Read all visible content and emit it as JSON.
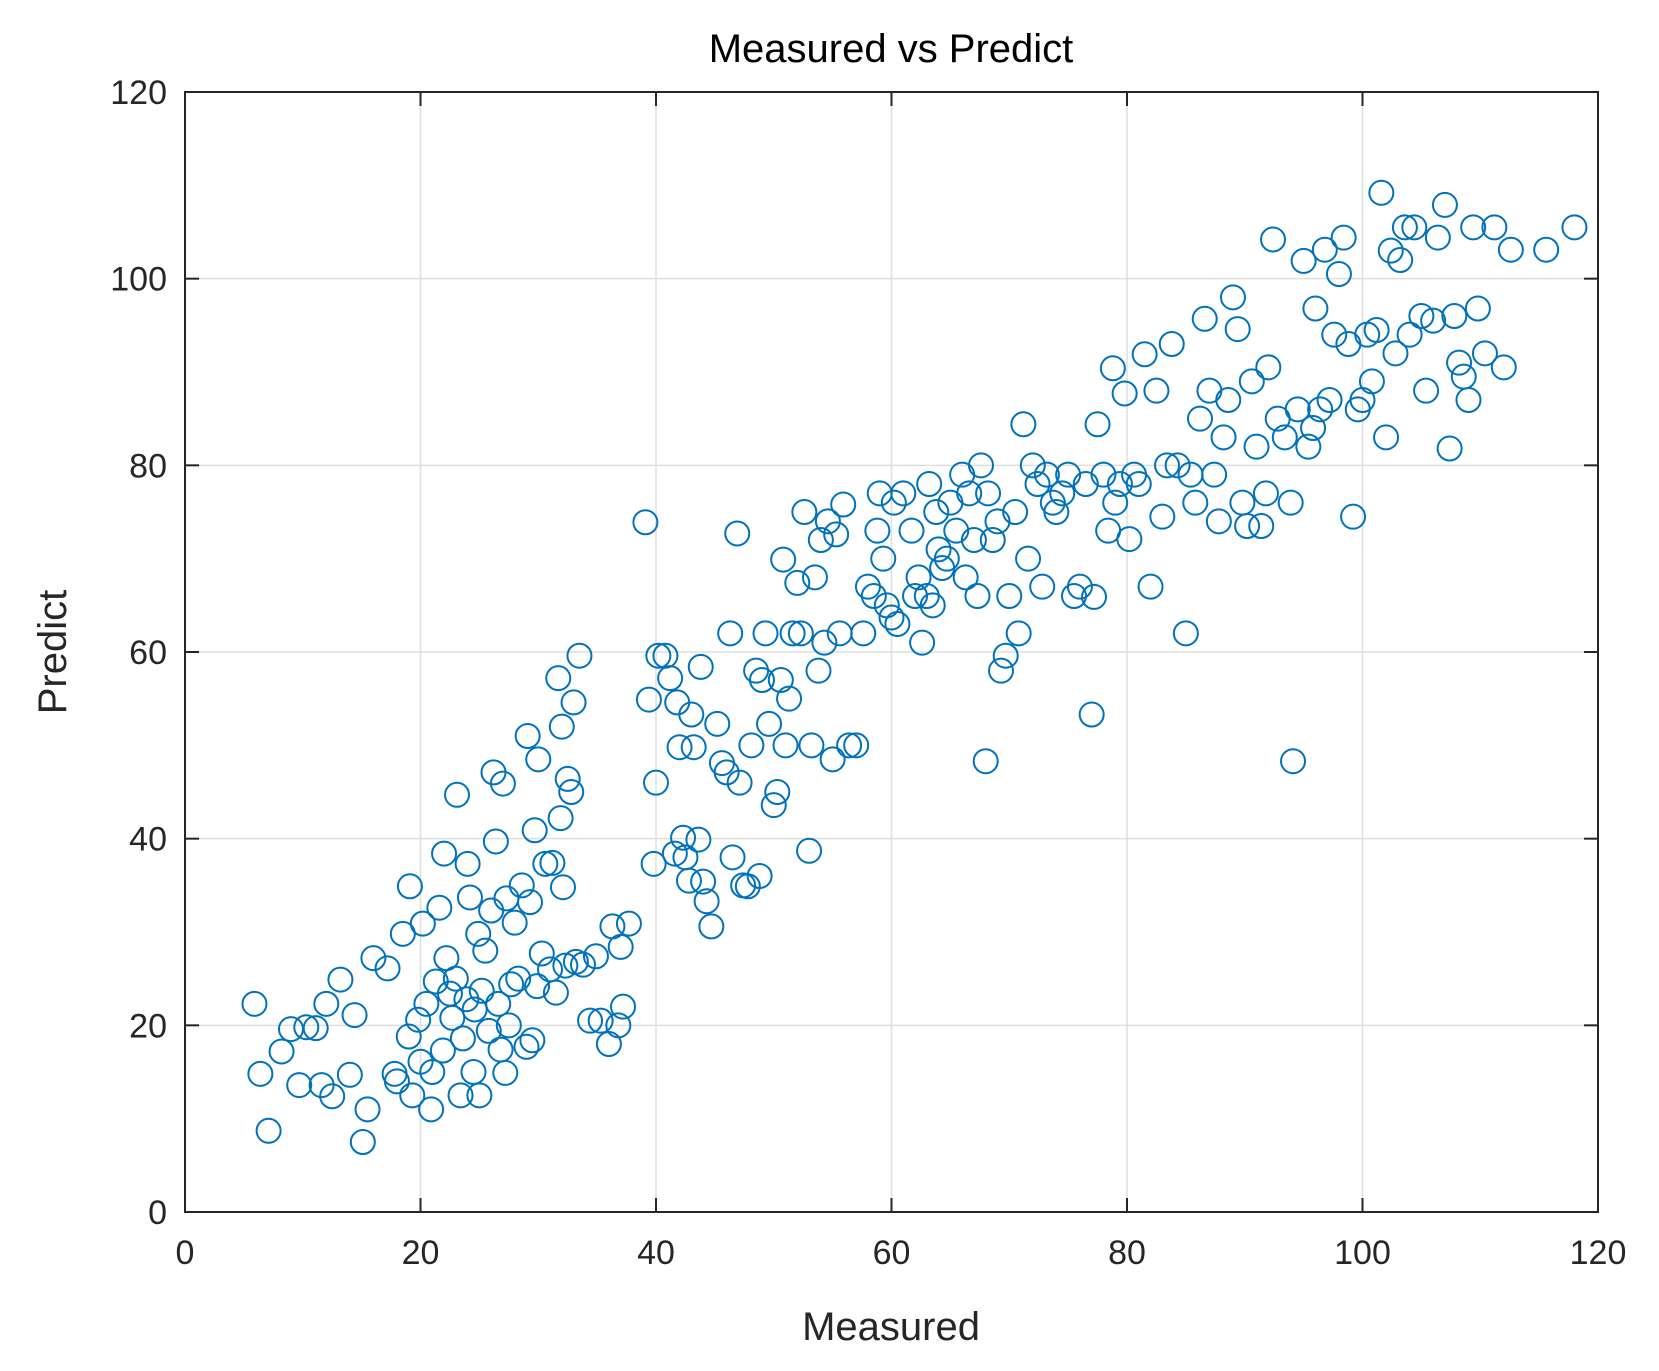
{
  "colors": {
    "marker": "#0072BD",
    "grid": "#DFDFDF",
    "axis": "#262626",
    "background": "#FFFFFF"
  },
  "chart_data": {
    "type": "scatter",
    "title": "Measured vs Predict",
    "xlabel": "Measured",
    "ylabel": "Predict",
    "xlim": [
      0,
      120
    ],
    "ylim": [
      0,
      120
    ],
    "xticks": [
      0,
      20,
      40,
      60,
      80,
      100,
      120
    ],
    "yticks": [
      0,
      20,
      40,
      60,
      80,
      100,
      120
    ],
    "xtick_labels": [
      "0",
      "20",
      "40",
      "60",
      "80",
      "100",
      "120"
    ],
    "ytick_labels": [
      "0",
      "20",
      "40",
      "60",
      "80",
      "100",
      "120"
    ],
    "grid": true,
    "marker": "circle-open",
    "series": [
      {
        "name": "Measured vs Predict",
        "points": [
          [
            5.9,
            22.3
          ],
          [
            6.4,
            14.8
          ],
          [
            7.1,
            8.7
          ],
          [
            8.2,
            17.2
          ],
          [
            9.0,
            19.6
          ],
          [
            9.7,
            13.6
          ],
          [
            10.3,
            19.8
          ],
          [
            11.1,
            19.7
          ],
          [
            11.6,
            13.6
          ],
          [
            12.0,
            22.3
          ],
          [
            12.5,
            12.4
          ],
          [
            13.2,
            24.9
          ],
          [
            14.0,
            14.7
          ],
          [
            14.4,
            21.1
          ],
          [
            15.1,
            7.5
          ],
          [
            15.5,
            11.0
          ],
          [
            16.0,
            27.2
          ],
          [
            17.2,
            26.1
          ],
          [
            17.8,
            14.8
          ],
          [
            18.0,
            14.0
          ],
          [
            18.5,
            29.8
          ],
          [
            19.1,
            34.9
          ],
          [
            19.0,
            18.8
          ],
          [
            19.3,
            12.5
          ],
          [
            19.8,
            20.6
          ],
          [
            20.0,
            16.1
          ],
          [
            20.2,
            30.9
          ],
          [
            20.5,
            22.3
          ],
          [
            20.9,
            11.0
          ],
          [
            21.0,
            15.0
          ],
          [
            21.3,
            24.7
          ],
          [
            21.6,
            32.6
          ],
          [
            21.9,
            17.3
          ],
          [
            22.0,
            38.4
          ],
          [
            22.2,
            27.2
          ],
          [
            22.5,
            23.4
          ],
          [
            22.7,
            20.8
          ],
          [
            23.0,
            25.0
          ],
          [
            23.1,
            44.7
          ],
          [
            23.4,
            12.5
          ],
          [
            23.6,
            18.6
          ],
          [
            23.9,
            22.8
          ],
          [
            24.0,
            37.3
          ],
          [
            24.2,
            33.7
          ],
          [
            24.5,
            15.0
          ],
          [
            24.6,
            21.7
          ],
          [
            24.9,
            29.8
          ],
          [
            25.0,
            12.5
          ],
          [
            25.2,
            23.7
          ],
          [
            25.5,
            28.0
          ],
          [
            25.8,
            19.4
          ],
          [
            26.0,
            32.3
          ],
          [
            26.2,
            47.1
          ],
          [
            26.4,
            39.7
          ],
          [
            26.6,
            22.3
          ],
          [
            26.8,
            17.4
          ],
          [
            27.0,
            45.9
          ],
          [
            27.2,
            14.9
          ],
          [
            27.3,
            33.6
          ],
          [
            27.5,
            20.0
          ],
          [
            27.7,
            24.4
          ],
          [
            28.0,
            31.0
          ],
          [
            28.3,
            25.0
          ],
          [
            28.6,
            35.0
          ],
          [
            29.0,
            17.7
          ],
          [
            29.1,
            51.0
          ],
          [
            29.3,
            33.2
          ],
          [
            29.5,
            18.4
          ],
          [
            29.7,
            40.9
          ],
          [
            29.9,
            24.2
          ],
          [
            30.0,
            48.5
          ],
          [
            30.3,
            27.7
          ],
          [
            30.6,
            37.3
          ],
          [
            31.0,
            26.0
          ],
          [
            31.2,
            37.4
          ],
          [
            31.5,
            23.5
          ],
          [
            31.7,
            57.2
          ],
          [
            31.9,
            42.2
          ],
          [
            32.0,
            52.0
          ],
          [
            32.1,
            34.8
          ],
          [
            32.3,
            26.4
          ],
          [
            32.5,
            46.4
          ],
          [
            32.8,
            45.0
          ],
          [
            33.0,
            54.6
          ],
          [
            33.2,
            26.8
          ],
          [
            33.5,
            59.6
          ],
          [
            33.8,
            26.5
          ],
          [
            34.4,
            20.5
          ],
          [
            34.9,
            27.4
          ],
          [
            35.3,
            20.5
          ],
          [
            36.0,
            18.0
          ],
          [
            36.3,
            30.6
          ],
          [
            36.8,
            20.0
          ],
          [
            37.0,
            28.4
          ],
          [
            37.2,
            22.0
          ],
          [
            37.7,
            30.9
          ],
          [
            39.1,
            73.9
          ],
          [
            39.4,
            54.9
          ],
          [
            39.8,
            37.3
          ],
          [
            40.0,
            46.0
          ],
          [
            40.2,
            59.6
          ],
          [
            40.8,
            59.6
          ],
          [
            41.2,
            57.2
          ],
          [
            41.6,
            38.4
          ],
          [
            41.8,
            54.6
          ],
          [
            42.0,
            49.8
          ],
          [
            42.3,
            40.1
          ],
          [
            42.5,
            38.0
          ],
          [
            42.8,
            35.5
          ],
          [
            43.0,
            53.3
          ],
          [
            43.2,
            49.8
          ],
          [
            43.6,
            39.9
          ],
          [
            43.8,
            58.4
          ],
          [
            44.0,
            35.4
          ],
          [
            44.3,
            33.3
          ],
          [
            44.7,
            30.6
          ],
          [
            45.2,
            52.3
          ],
          [
            45.6,
            48.1
          ],
          [
            46.0,
            47.1
          ],
          [
            46.3,
            62.0
          ],
          [
            46.5,
            38.0
          ],
          [
            46.9,
            72.7
          ],
          [
            47.1,
            46.0
          ],
          [
            47.4,
            35.0
          ],
          [
            47.8,
            34.9
          ],
          [
            48.1,
            50.0
          ],
          [
            48.5,
            58.0
          ],
          [
            48.8,
            36.0
          ],
          [
            49.0,
            57.0
          ],
          [
            49.3,
            62.0
          ],
          [
            49.6,
            52.3
          ],
          [
            50.0,
            43.6
          ],
          [
            50.3,
            45.0
          ],
          [
            50.6,
            57.0
          ],
          [
            50.8,
            69.9
          ],
          [
            51.0,
            50.0
          ],
          [
            51.3,
            55.0
          ],
          [
            51.6,
            62.0
          ],
          [
            52.0,
            67.4
          ],
          [
            52.3,
            62.0
          ],
          [
            52.6,
            75.0
          ],
          [
            53.0,
            38.7
          ],
          [
            53.2,
            50.0
          ],
          [
            53.5,
            68.0
          ],
          [
            53.8,
            58.0
          ],
          [
            54.0,
            72.0
          ],
          [
            54.3,
            61.0
          ],
          [
            54.6,
            74.0
          ],
          [
            55.0,
            48.5
          ],
          [
            55.3,
            72.6
          ],
          [
            55.6,
            62.0
          ],
          [
            55.9,
            75.8
          ],
          [
            56.4,
            50.0
          ],
          [
            57.0,
            50.0
          ],
          [
            57.6,
            62.0
          ],
          [
            58.0,
            67.0
          ],
          [
            58.5,
            66.0
          ],
          [
            58.8,
            73.0
          ],
          [
            59.0,
            77.0
          ],
          [
            59.3,
            70.0
          ],
          [
            59.6,
            65.0
          ],
          [
            60.0,
            63.7
          ],
          [
            60.2,
            76.0
          ],
          [
            60.5,
            63.0
          ],
          [
            61.0,
            77.0
          ],
          [
            61.7,
            73.0
          ],
          [
            62.0,
            66.0
          ],
          [
            62.3,
            68.0
          ],
          [
            62.6,
            61.0
          ],
          [
            63.0,
            66.0
          ],
          [
            63.2,
            78.0
          ],
          [
            63.5,
            65.0
          ],
          [
            63.8,
            75.0
          ],
          [
            64.0,
            71.0
          ],
          [
            64.3,
            69.0
          ],
          [
            64.7,
            70.0
          ],
          [
            65.0,
            76.0
          ],
          [
            65.5,
            73.0
          ],
          [
            66.0,
            79.0
          ],
          [
            66.3,
            68.0
          ],
          [
            66.6,
            77.0
          ],
          [
            67.0,
            72.0
          ],
          [
            67.3,
            66.0
          ],
          [
            67.6,
            80.0
          ],
          [
            68.0,
            48.3
          ],
          [
            68.2,
            77.0
          ],
          [
            68.6,
            72.0
          ],
          [
            69.0,
            74.0
          ],
          [
            69.3,
            58.0
          ],
          [
            69.7,
            59.6
          ],
          [
            70.0,
            66.0
          ],
          [
            70.5,
            75.0
          ],
          [
            70.8,
            62.0
          ],
          [
            71.2,
            84.4
          ],
          [
            71.6,
            70.0
          ],
          [
            72.0,
            80.0
          ],
          [
            72.4,
            78.0
          ],
          [
            72.8,
            67.0
          ],
          [
            73.2,
            79.0
          ],
          [
            73.7,
            76.0
          ],
          [
            74.0,
            75.0
          ],
          [
            74.5,
            77.0
          ],
          [
            75.0,
            79.0
          ],
          [
            75.5,
            66.0
          ],
          [
            76.0,
            67.0
          ],
          [
            76.5,
            78.0
          ],
          [
            77.0,
            53.3
          ],
          [
            77.2,
            65.9
          ],
          [
            77.5,
            84.4
          ],
          [
            78.0,
            79.0
          ],
          [
            78.4,
            73.0
          ],
          [
            78.8,
            90.4
          ],
          [
            79.0,
            76.0
          ],
          [
            79.4,
            78.0
          ],
          [
            79.8,
            87.7
          ],
          [
            80.2,
            72.1
          ],
          [
            80.6,
            79.0
          ],
          [
            81.0,
            78.0
          ],
          [
            81.5,
            91.9
          ],
          [
            82.0,
            67.0
          ],
          [
            82.5,
            88.0
          ],
          [
            83.0,
            74.5
          ],
          [
            83.4,
            80.0
          ],
          [
            83.8,
            93.0
          ],
          [
            84.3,
            80.0
          ],
          [
            85.0,
            62.0
          ],
          [
            85.4,
            79.0
          ],
          [
            85.8,
            76.0
          ],
          [
            86.2,
            85.0
          ],
          [
            86.6,
            95.7
          ],
          [
            87.0,
            88.0
          ],
          [
            87.4,
            79.0
          ],
          [
            87.8,
            74.0
          ],
          [
            88.2,
            83.0
          ],
          [
            88.6,
            87.0
          ],
          [
            89.0,
            98.0
          ],
          [
            89.4,
            94.6
          ],
          [
            89.8,
            76.0
          ],
          [
            90.2,
            73.5
          ],
          [
            90.6,
            89.0
          ],
          [
            91.0,
            82.0
          ],
          [
            91.4,
            73.5
          ],
          [
            91.8,
            77.0
          ],
          [
            92.0,
            90.5
          ],
          [
            92.4,
            104.2
          ],
          [
            92.8,
            85.0
          ],
          [
            93.4,
            83.0
          ],
          [
            93.9,
            76.0
          ],
          [
            94.1,
            48.3
          ],
          [
            94.5,
            86.0
          ],
          [
            95.0,
            101.9
          ],
          [
            95.4,
            82.0
          ],
          [
            95.8,
            84.0
          ],
          [
            96.0,
            96.8
          ],
          [
            96.4,
            86.0
          ],
          [
            96.8,
            103.1
          ],
          [
            97.2,
            87.0
          ],
          [
            97.6,
            94.0
          ],
          [
            98.0,
            100.5
          ],
          [
            98.4,
            104.4
          ],
          [
            98.8,
            93.0
          ],
          [
            99.2,
            74.5
          ],
          [
            99.6,
            86.0
          ],
          [
            100.0,
            87.0
          ],
          [
            100.4,
            94.0
          ],
          [
            100.8,
            89.0
          ],
          [
            101.2,
            94.5
          ],
          [
            101.6,
            109.2
          ],
          [
            102.0,
            83.0
          ],
          [
            102.4,
            103.0
          ],
          [
            102.8,
            92.0
          ],
          [
            103.2,
            102.0
          ],
          [
            103.6,
            105.5
          ],
          [
            104.0,
            94.0
          ],
          [
            104.4,
            105.5
          ],
          [
            105.0,
            96.0
          ],
          [
            105.4,
            88.0
          ],
          [
            106.0,
            95.5
          ],
          [
            106.4,
            104.4
          ],
          [
            107.0,
            107.9
          ],
          [
            107.4,
            81.8
          ],
          [
            107.8,
            96.0
          ],
          [
            108.2,
            91.0
          ],
          [
            108.6,
            89.5
          ],
          [
            109.0,
            87.0
          ],
          [
            109.4,
            105.5
          ],
          [
            109.8,
            96.8
          ],
          [
            110.4,
            92.0
          ],
          [
            111.2,
            105.5
          ],
          [
            112.0,
            90.5
          ],
          [
            112.6,
            103.1
          ],
          [
            115.6,
            103.1
          ],
          [
            118.0,
            105.5
          ]
        ]
      }
    ]
  }
}
